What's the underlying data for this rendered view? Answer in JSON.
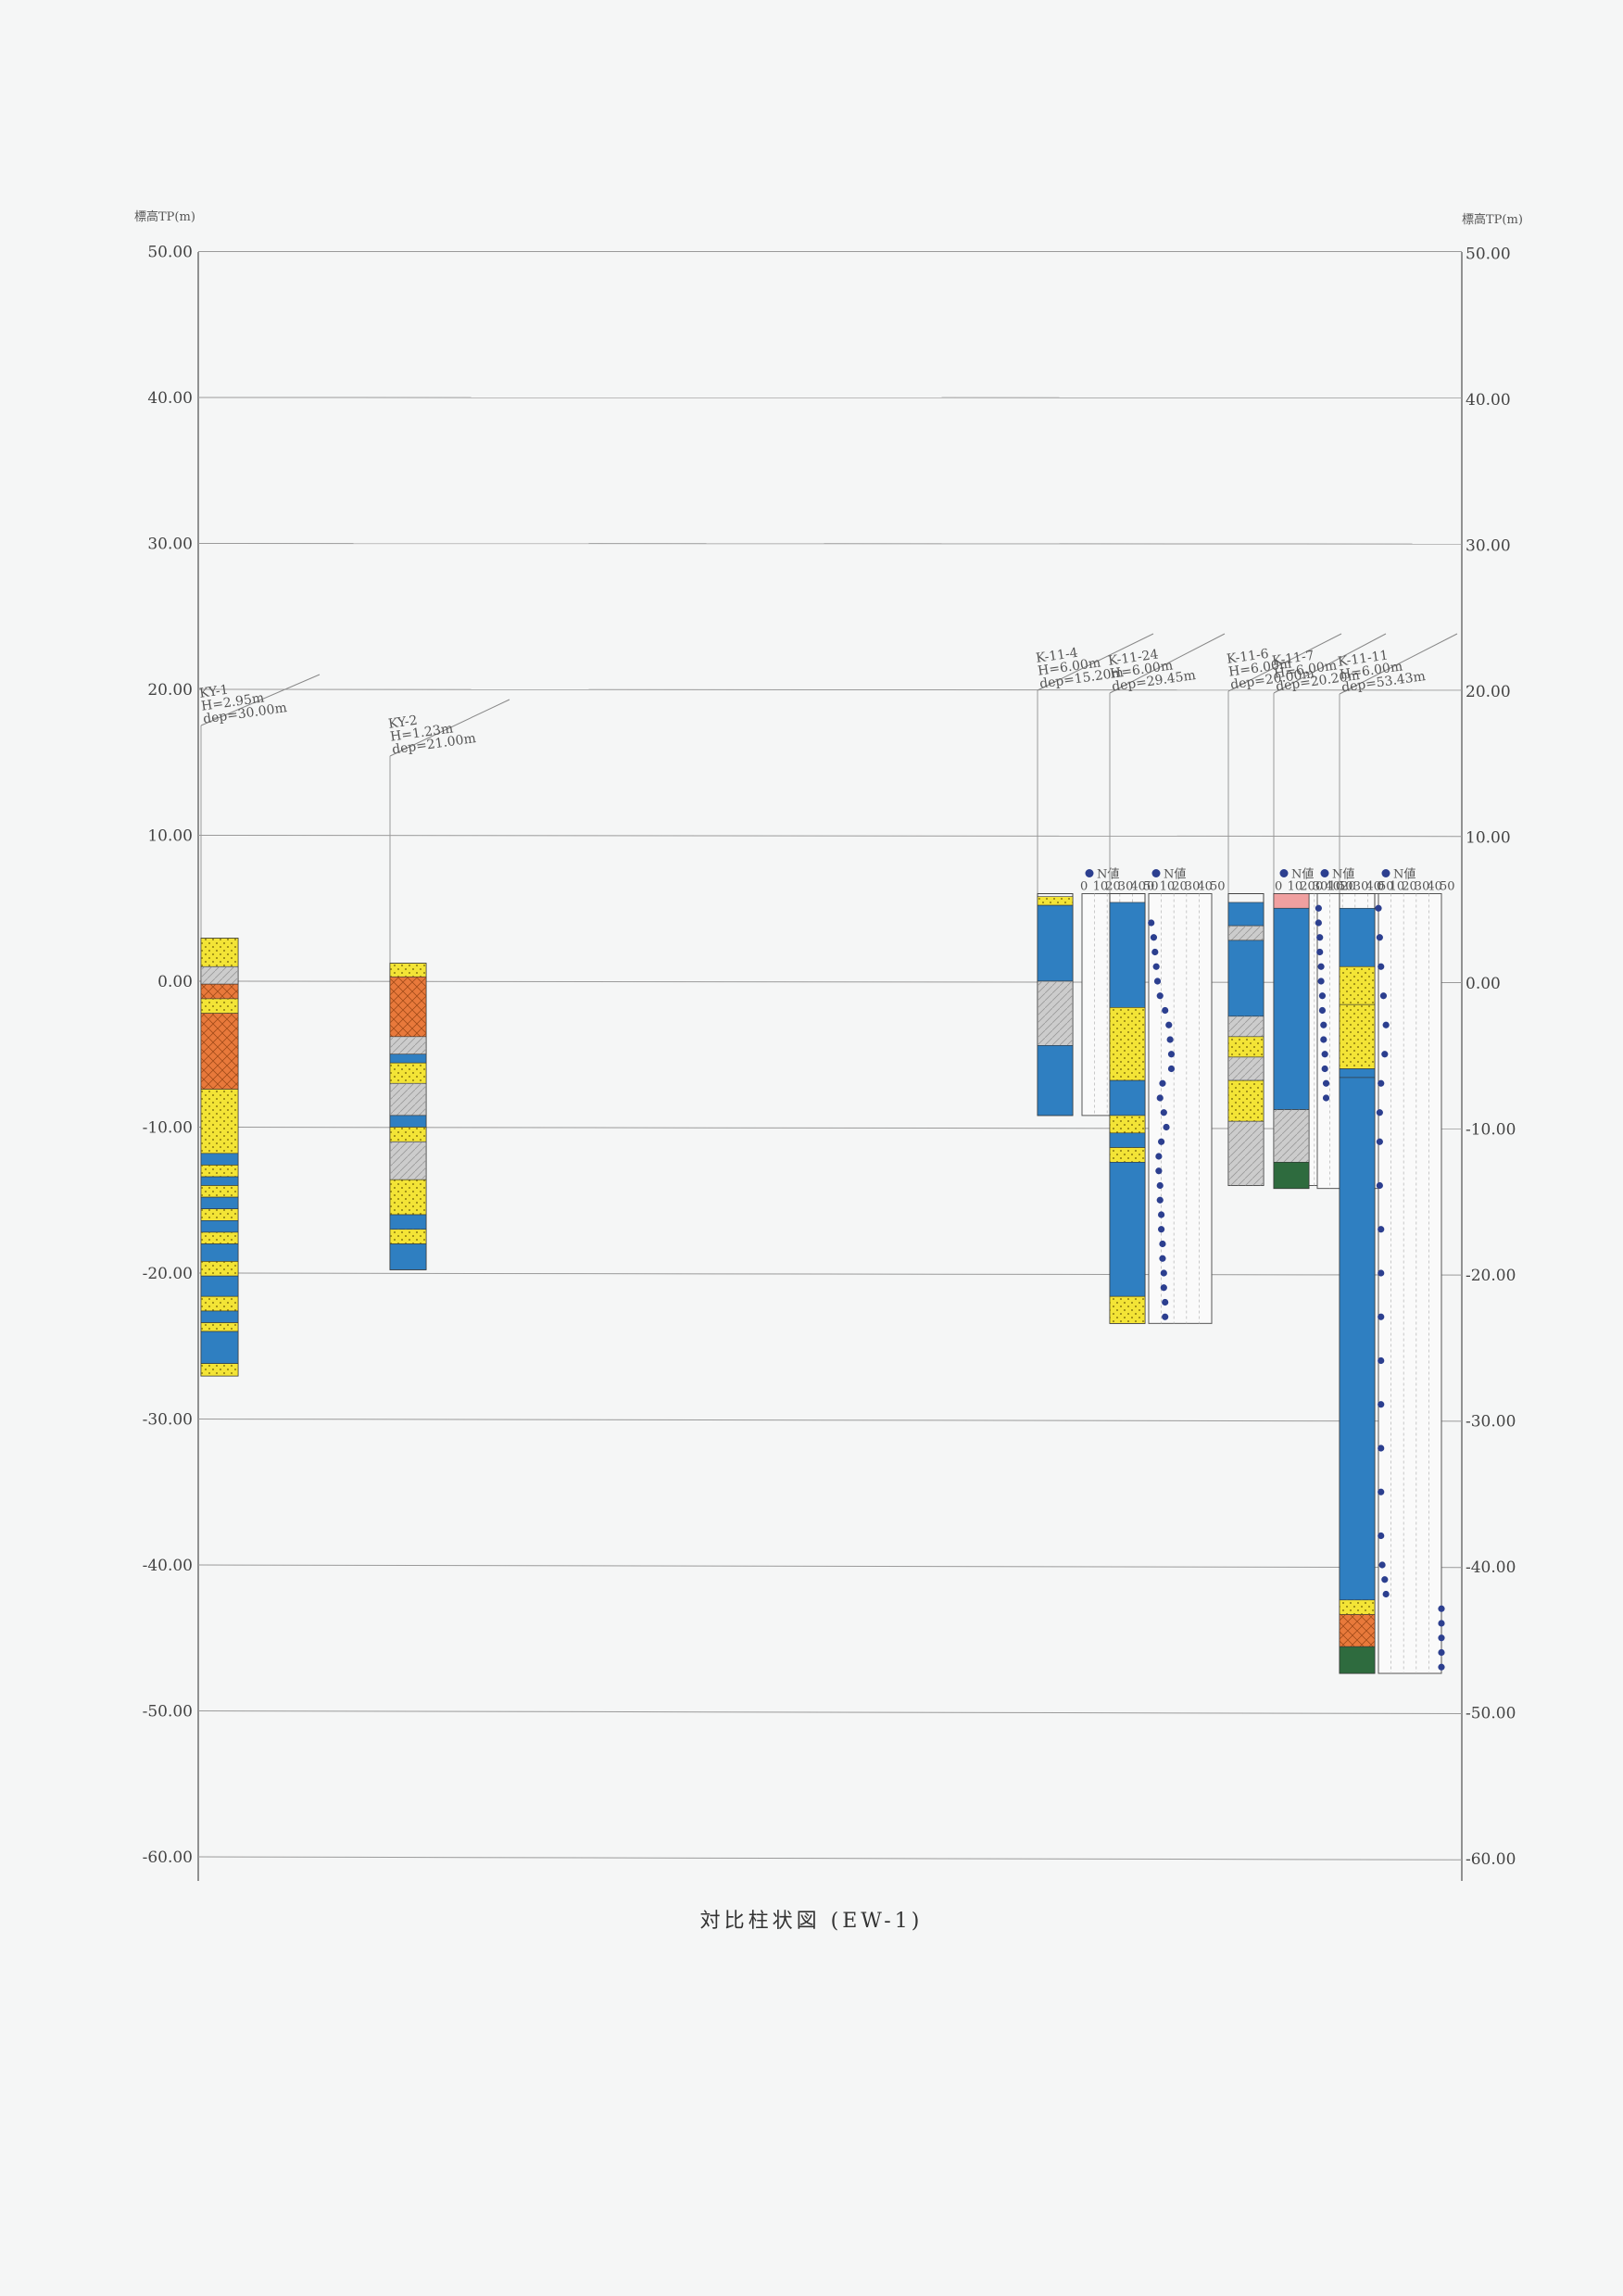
{
  "title": "対比柱状図 (EW-1)",
  "axis": {
    "left_label": "標高TP(m)",
    "right_label": "標高TP(m)",
    "ticks": [
      50,
      40,
      30,
      20,
      10,
      0,
      -10,
      -20,
      -30,
      -40,
      -50,
      -60
    ],
    "left_tick_labels": [
      "50.00",
      "40.00",
      "30.00",
      "20.00",
      "10.00",
      "0.00",
      "-10.00",
      "-20.00",
      "-30.00",
      "-40.00",
      "-50.00",
      "-60.00"
    ],
    "right_tick_labels": [
      "50.00",
      "40.00",
      "30.00",
      "20.00",
      "10.00",
      "0.00",
      "-10.00",
      "-20.00",
      "-30.00",
      "-40.00",
      "-50.00",
      "-60.00"
    ]
  },
  "soil_colors": {
    "clay": "#2f7fc1",
    "sand": "#f3e436",
    "gravel": "#e8793b",
    "silt": "#cccccc",
    "fill": "#f0a0a0",
    "rock": "#2e6b3e"
  },
  "n_legend": "N値",
  "n_scale_labels": [
    "0",
    "10",
    "20",
    "30",
    "40",
    "50"
  ],
  "boreholes": [
    {
      "name": "KY-1",
      "elev_label": "H=2.95m",
      "depth_label": "dep=30.00m",
      "top": 2.95,
      "bottom": -27.05,
      "layers": [
        {
          "top": 2.95,
          "bottom": 1.0,
          "soil": "sand"
        },
        {
          "top": 1.0,
          "bottom": -0.2,
          "soil": "silt"
        },
        {
          "top": -0.2,
          "bottom": -1.2,
          "soil": "gravel"
        },
        {
          "top": -1.2,
          "bottom": -2.2,
          "soil": "sand"
        },
        {
          "top": -2.2,
          "bottom": -7.4,
          "soil": "gravel"
        },
        {
          "top": -7.4,
          "bottom": -11.8,
          "soil": "sand"
        },
        {
          "top": -11.8,
          "bottom": -12.6,
          "soil": "clay"
        },
        {
          "top": -12.6,
          "bottom": -13.4,
          "soil": "sand"
        },
        {
          "top": -13.4,
          "bottom": -14.0,
          "soil": "clay"
        },
        {
          "top": -14.0,
          "bottom": -14.8,
          "soil": "sand"
        },
        {
          "top": -14.8,
          "bottom": -15.6,
          "soil": "clay"
        },
        {
          "top": -15.6,
          "bottom": -16.4,
          "soil": "sand"
        },
        {
          "top": -16.4,
          "bottom": -17.2,
          "soil": "clay"
        },
        {
          "top": -17.2,
          "bottom": -18.0,
          "soil": "sand"
        },
        {
          "top": -18.0,
          "bottom": -19.2,
          "soil": "clay"
        },
        {
          "top": -19.2,
          "bottom": -20.2,
          "soil": "sand"
        },
        {
          "top": -20.2,
          "bottom": -21.6,
          "soil": "clay"
        },
        {
          "top": -21.6,
          "bottom": -22.6,
          "soil": "sand"
        },
        {
          "top": -22.6,
          "bottom": -23.4,
          "soil": "clay"
        },
        {
          "top": -23.4,
          "bottom": -24.0,
          "soil": "sand"
        },
        {
          "top": -24.0,
          "bottom": -26.2,
          "soil": "clay"
        },
        {
          "top": -26.2,
          "bottom": -27.05,
          "soil": "sand"
        }
      ]
    },
    {
      "name": "KY-2",
      "elev_label": "H=1.23m",
      "depth_label": "dep=21.00m",
      "top": 1.23,
      "bottom": -19.77,
      "layers": [
        {
          "top": 1.23,
          "bottom": 0.3,
          "soil": "sand"
        },
        {
          "top": 0.3,
          "bottom": -3.8,
          "soil": "gravel"
        },
        {
          "top": -3.8,
          "bottom": -5.0,
          "soil": "silt"
        },
        {
          "top": -5.0,
          "bottom": -5.6,
          "soil": "clay"
        },
        {
          "top": -5.6,
          "bottom": -7.0,
          "soil": "sand"
        },
        {
          "top": -7.0,
          "bottom": -9.2,
          "soil": "silt"
        },
        {
          "top": -9.2,
          "bottom": -10.0,
          "soil": "clay"
        },
        {
          "top": -10.0,
          "bottom": -11.0,
          "soil": "sand"
        },
        {
          "top": -11.0,
          "bottom": -13.6,
          "soil": "silt"
        },
        {
          "top": -13.6,
          "bottom": -16.0,
          "soil": "sand"
        },
        {
          "top": -16.0,
          "bottom": -17.0,
          "soil": "clay"
        },
        {
          "top": -17.0,
          "bottom": -18.0,
          "soil": "sand"
        },
        {
          "top": -18.0,
          "bottom": -19.77,
          "soil": "clay"
        }
      ]
    },
    {
      "name": "K-11-4",
      "elev_label": "H=6.00m",
      "depth_label": "dep=15.20m",
      "top": 6.0,
      "bottom": -9.2,
      "layers": [
        {
          "top": 5.8,
          "bottom": 5.2,
          "soil": "sand"
        },
        {
          "top": 5.2,
          "bottom": 0.0,
          "soil": "clay"
        },
        {
          "top": 0.0,
          "bottom": -4.4,
          "soil": "silt"
        },
        {
          "top": -4.4,
          "bottom": -9.2,
          "soil": "clay"
        }
      ]
    },
    {
      "name": "K-11-24",
      "elev_label": "H=6.00m",
      "depth_label": "dep=29.45m",
      "top": 6.0,
      "bottom": -23.45,
      "layers": [
        {
          "top": 5.4,
          "bottom": -1.8,
          "soil": "clay"
        },
        {
          "top": -1.8,
          "bottom": -6.8,
          "soil": "sand"
        },
        {
          "top": -6.8,
          "bottom": -9.2,
          "soil": "clay"
        },
        {
          "top": -9.2,
          "bottom": -10.4,
          "soil": "sand"
        },
        {
          "top": -10.4,
          "bottom": -11.4,
          "soil": "clay"
        },
        {
          "top": -11.4,
          "bottom": -12.4,
          "soil": "sand"
        },
        {
          "top": -12.4,
          "bottom": -21.6,
          "soil": "clay"
        },
        {
          "top": -21.6,
          "bottom": -23.45,
          "soil": "sand"
        }
      ],
      "n_values": [
        {
          "d": 4,
          "n": 2
        },
        {
          "d": 3,
          "n": 4
        },
        {
          "d": 2,
          "n": 5
        },
        {
          "d": 1,
          "n": 6
        },
        {
          "d": 0,
          "n": 7
        },
        {
          "d": -1,
          "n": 9
        },
        {
          "d": -2,
          "n": 13
        },
        {
          "d": -3,
          "n": 16
        },
        {
          "d": -4,
          "n": 17
        },
        {
          "d": -5,
          "n": 18
        },
        {
          "d": -6,
          "n": 18
        },
        {
          "d": -7,
          "n": 11
        },
        {
          "d": -8,
          "n": 9
        },
        {
          "d": -9,
          "n": 12
        },
        {
          "d": -10,
          "n": 14
        },
        {
          "d": -11,
          "n": 10
        },
        {
          "d": -12,
          "n": 8
        },
        {
          "d": -13,
          "n": 8
        },
        {
          "d": -14,
          "n": 9
        },
        {
          "d": -15,
          "n": 9
        },
        {
          "d": -16,
          "n": 10
        },
        {
          "d": -17,
          "n": 10
        },
        {
          "d": -18,
          "n": 11
        },
        {
          "d": -19,
          "n": 11
        },
        {
          "d": -20,
          "n": 12
        },
        {
          "d": -21,
          "n": 12
        },
        {
          "d": -22,
          "n": 13
        },
        {
          "d": -23,
          "n": 13
        }
      ]
    },
    {
      "name": "K-11-6",
      "elev_label": "H=6.00m",
      "depth_label": "dep=20.00m",
      "top": 6.0,
      "bottom": -14.0,
      "layers": [
        {
          "top": 5.4,
          "bottom": 3.8,
          "soil": "clay"
        },
        {
          "top": 3.8,
          "bottom": 2.8,
          "soil": "silt"
        },
        {
          "top": 2.8,
          "bottom": -2.4,
          "soil": "clay"
        },
        {
          "top": -2.4,
          "bottom": -3.8,
          "soil": "silt"
        },
        {
          "top": -3.8,
          "bottom": -5.2,
          "soil": "sand"
        },
        {
          "top": -5.2,
          "bottom": -6.8,
          "soil": "silt"
        },
        {
          "top": -6.8,
          "bottom": -9.6,
          "soil": "sand"
        },
        {
          "top": -9.6,
          "bottom": -14.0,
          "soil": "silt"
        }
      ]
    },
    {
      "name": "K-11-7",
      "elev_label": "H=6.00m",
      "depth_label": "dep=20.20m",
      "top": 6.0,
      "bottom": -14.2,
      "layers": [
        {
          "top": 6.0,
          "bottom": 5.0,
          "soil": "fill"
        },
        {
          "top": 5.0,
          "bottom": -8.8,
          "soil": "clay"
        },
        {
          "top": -8.8,
          "bottom": -12.4,
          "soil": "silt"
        },
        {
          "top": -12.4,
          "bottom": -14.2,
          "soil": "rock"
        }
      ],
      "n_values": [
        {
          "d": 5,
          "n": 1
        },
        {
          "d": 4,
          "n": 1
        },
        {
          "d": 3,
          "n": 2
        },
        {
          "d": 2,
          "n": 2
        },
        {
          "d": 1,
          "n": 3
        },
        {
          "d": 0,
          "n": 3
        },
        {
          "d": -1,
          "n": 4
        },
        {
          "d": -2,
          "n": 4
        },
        {
          "d": -3,
          "n": 5
        },
        {
          "d": -4,
          "n": 5
        },
        {
          "d": -5,
          "n": 6
        },
        {
          "d": -6,
          "n": 6
        },
        {
          "d": -7,
          "n": 7
        },
        {
          "d": -8,
          "n": 7
        }
      ]
    },
    {
      "name": "K-11-11",
      "elev_label": "H=6.00m",
      "depth_label": "dep=53.43m",
      "top": 6.0,
      "bottom": -47.43,
      "layers": [
        {
          "top": 5.0,
          "bottom": 1.0,
          "soil": "clay"
        },
        {
          "top": 1.0,
          "bottom": -1.6,
          "soil": "sand"
        },
        {
          "top": -1.6,
          "bottom": -6.0,
          "soil": "sand"
        },
        {
          "top": -6.0,
          "bottom": -6.6,
          "soil": "clay"
        },
        {
          "top": -6.6,
          "bottom": -42.4,
          "soil": "clay"
        },
        {
          "top": -42.4,
          "bottom": -43.4,
          "soil": "sand"
        },
        {
          "top": -43.4,
          "bottom": -45.6,
          "soil": "gravel"
        },
        {
          "top": -45.6,
          "bottom": -47.43,
          "soil": "rock"
        }
      ],
      "n_values": [
        {
          "d": 5,
          "n": 0
        },
        {
          "d": 3,
          "n": 1
        },
        {
          "d": 1,
          "n": 2
        },
        {
          "d": -1,
          "n": 4
        },
        {
          "d": -3,
          "n": 6
        },
        {
          "d": -5,
          "n": 5
        },
        {
          "d": -7,
          "n": 2
        },
        {
          "d": -9,
          "n": 1
        },
        {
          "d": -11,
          "n": 1
        },
        {
          "d": -14,
          "n": 1
        },
        {
          "d": -17,
          "n": 2
        },
        {
          "d": -20,
          "n": 2
        },
        {
          "d": -23,
          "n": 2
        },
        {
          "d": -26,
          "n": 2
        },
        {
          "d": -29,
          "n": 2
        },
        {
          "d": -32,
          "n": 2
        },
        {
          "d": -35,
          "n": 2
        },
        {
          "d": -38,
          "n": 2
        },
        {
          "d": -40,
          "n": 3
        },
        {
          "d": -41,
          "n": 5
        },
        {
          "d": -42,
          "n": 6
        },
        {
          "d": -43,
          "n": 50
        },
        {
          "d": -44,
          "n": 50
        },
        {
          "d": -45,
          "n": 50
        },
        {
          "d": -46,
          "n": 50
        },
        {
          "d": -47,
          "n": 50
        }
      ]
    }
  ]
}
